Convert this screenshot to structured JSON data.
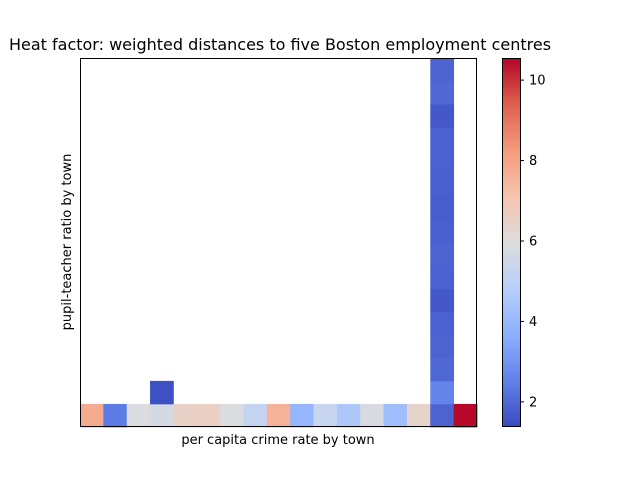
{
  "chart_data": {
    "type": "heatmap",
    "title": "Heat factor: weighted distances to five Boston employment centres",
    "xlabel": "per capita crime rate by town",
    "ylabel": "pupil-teacher ratio by town",
    "n_cols": 17,
    "n_rows": 16,
    "x_ticks_visible": false,
    "y_ticks_visible": false,
    "colormap": "coolwarm",
    "colorbar": {
      "vmin": 1.4,
      "vmax": 10.55,
      "ticks": [
        2,
        4,
        6,
        8,
        10
      ],
      "tick_labels": [
        "2",
        "4",
        "6",
        "8",
        "10"
      ]
    },
    "cells": [
      {
        "col": 0,
        "row": 0,
        "value": 7.8
      },
      {
        "col": 1,
        "row": 0,
        "value": 2.4
      },
      {
        "col": 2,
        "row": 0,
        "value": 5.9
      },
      {
        "col": 3,
        "row": 0,
        "value": 5.7
      },
      {
        "col": 3,
        "row": 1,
        "value": 1.5
      },
      {
        "col": 4,
        "row": 0,
        "value": 6.5
      },
      {
        "col": 5,
        "row": 0,
        "value": 6.6
      },
      {
        "col": 6,
        "row": 0,
        "value": 5.9
      },
      {
        "col": 7,
        "row": 0,
        "value": 5.2
      },
      {
        "col": 8,
        "row": 0,
        "value": 7.6
      },
      {
        "col": 9,
        "row": 0,
        "value": 3.9
      },
      {
        "col": 10,
        "row": 0,
        "value": 5.3
      },
      {
        "col": 11,
        "row": 0,
        "value": 4.5
      },
      {
        "col": 12,
        "row": 0,
        "value": 5.8
      },
      {
        "col": 13,
        "row": 0,
        "value": 4.2
      },
      {
        "col": 14,
        "row": 0,
        "value": 6.4
      },
      {
        "col": 15,
        "row": 0,
        "value": 1.9
      },
      {
        "col": 15,
        "row": 1,
        "value": 2.6
      },
      {
        "col": 15,
        "row": 2,
        "value": 2.0
      },
      {
        "col": 15,
        "row": 3,
        "value": 1.9
      },
      {
        "col": 15,
        "row": 4,
        "value": 1.85
      },
      {
        "col": 15,
        "row": 5,
        "value": 1.65
      },
      {
        "col": 15,
        "row": 6,
        "value": 1.85
      },
      {
        "col": 15,
        "row": 7,
        "value": 1.9
      },
      {
        "col": 15,
        "row": 8,
        "value": 1.8
      },
      {
        "col": 15,
        "row": 9,
        "value": 1.75
      },
      {
        "col": 15,
        "row": 10,
        "value": 1.8
      },
      {
        "col": 15,
        "row": 11,
        "value": 1.85
      },
      {
        "col": 15,
        "row": 12,
        "value": 1.85
      },
      {
        "col": 15,
        "row": 13,
        "value": 1.65
      },
      {
        "col": 15,
        "row": 14,
        "value": 2.0
      },
      {
        "col": 15,
        "row": 15,
        "value": 1.9
      },
      {
        "col": 16,
        "row": 0,
        "value": 10.5
      }
    ]
  }
}
